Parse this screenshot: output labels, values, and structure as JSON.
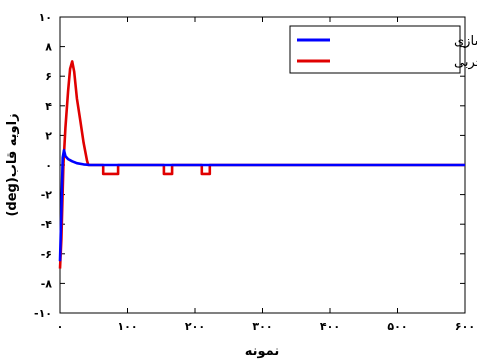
{
  "chart_data": {
    "type": "line",
    "xlabel": "نمونه",
    "ylabel": "زاویه قاب(deg)",
    "xlim": [
      0,
      600
    ],
    "ylim": [
      -10,
      10
    ],
    "x_ticks": [
      {
        "value": 0,
        "label": "۰"
      },
      {
        "value": 100,
        "label": "۱۰۰"
      },
      {
        "value": 200,
        "label": "۲۰۰"
      },
      {
        "value": 300,
        "label": "۳۰۰"
      },
      {
        "value": 400,
        "label": "۴۰۰"
      },
      {
        "value": 500,
        "label": "۵۰۰"
      },
      {
        "value": 600,
        "label": "۶۰۰"
      }
    ],
    "y_ticks": [
      {
        "value": 10,
        "label": "۱۰"
      },
      {
        "value": 8,
        "label": "۸"
      },
      {
        "value": 6,
        "label": "۶"
      },
      {
        "value": 4,
        "label": "۴"
      },
      {
        "value": 2,
        "label": "۲"
      },
      {
        "value": 0,
        "label": "۰"
      },
      {
        "value": -2,
        "label": "-۲"
      },
      {
        "value": -4,
        "label": "-۴"
      },
      {
        "value": -6,
        "label": "-۶"
      },
      {
        "value": -8,
        "label": "-۸"
      },
      {
        "value": -10,
        "label": "-۱۰"
      }
    ],
    "legend_position": "top-right",
    "series": [
      {
        "name": "نتایج شبیه سازی",
        "color": "#0000ff",
        "points": [
          [
            0,
            -6.5
          ],
          [
            2,
            -3.0
          ],
          [
            4,
            0.5
          ],
          [
            6,
            1.0
          ],
          [
            8,
            0.6
          ],
          [
            12,
            0.4
          ],
          [
            18,
            0.25
          ],
          [
            25,
            0.12
          ],
          [
            35,
            0.04
          ],
          [
            45,
            0
          ],
          [
            600,
            0
          ]
        ]
      },
      {
        "name": "داده های تجربی",
        "color": "#e00000",
        "points": [
          [
            0,
            -7.0
          ],
          [
            2,
            -5.0
          ],
          [
            5,
            0
          ],
          [
            8,
            2.5
          ],
          [
            12,
            5.0
          ],
          [
            15,
            6.5
          ],
          [
            18,
            7.0
          ],
          [
            21,
            6.3
          ],
          [
            25,
            4.5
          ],
          [
            30,
            3.0
          ],
          [
            35,
            1.5
          ],
          [
            40,
            0.3
          ],
          [
            42,
            0
          ],
          [
            64,
            0
          ],
          [
            64,
            -0.6
          ],
          [
            86,
            -0.6
          ],
          [
            86,
            0
          ],
          [
            154,
            0
          ],
          [
            154,
            -0.6
          ],
          [
            166,
            -0.6
          ],
          [
            166,
            0
          ],
          [
            210,
            0
          ],
          [
            210,
            -0.6
          ],
          [
            222,
            -0.6
          ],
          [
            222,
            0
          ],
          [
            600,
            0
          ]
        ]
      }
    ]
  }
}
